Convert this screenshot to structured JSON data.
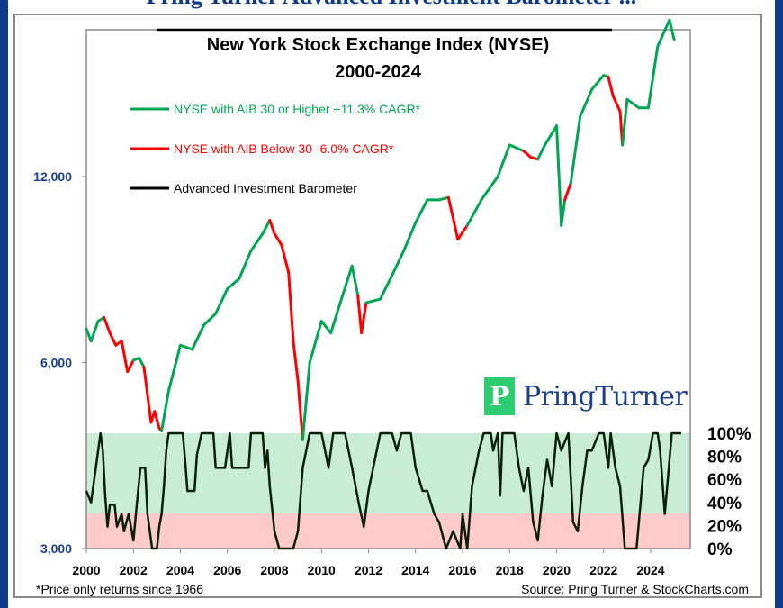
{
  "header": {
    "title": "Pring Turner Advanced Investment Barometer ..."
  },
  "logo": {
    "mark": "P",
    "text": "PringTurner"
  },
  "chart_data": {
    "type": "line",
    "title": "New York Stock Exchange Index (NYSE)",
    "subtitle": "2000-2024",
    "footnote": "*Price only returns since 1966",
    "source": "Source: Pring Turner & StockCharts.com",
    "legend": [
      {
        "label": "NYSE with AIB 30 or Higher +11.3% CAGR*",
        "color": "#00a651"
      },
      {
        "label": "NYSE with AIB Below 30 -6.0% CAGR*",
        "color": "#ff0000"
      },
      {
        "label": "Advanced Investment Barometer",
        "color": "#000000"
      }
    ],
    "legend_placement": "top-left",
    "y_scale": "log",
    "ylim": [
      3000,
      24000
    ],
    "y_ticks": [
      "3,000",
      "6,000",
      "12,000"
    ],
    "y_tick_values": [
      3000,
      6000,
      12000
    ],
    "x_ticks": [
      "2000",
      "2002",
      "2004",
      "2006",
      "2008",
      "2010",
      "2012",
      "2014",
      "2016",
      "2018",
      "2020",
      "2022",
      "2024"
    ],
    "xlim": [
      2000,
      2025.7
    ],
    "aib_ticks": [
      "100%",
      "80%",
      "60%",
      "40%",
      "20%",
      "0%"
    ],
    "aib_threshold": 30,
    "colors": {
      "green": "#00a651",
      "red": "#ff0000",
      "aib": "#0a1f0a",
      "green_band": "#c8ecd5",
      "red_band": "#fecaca",
      "axis_label": "#1b3f8f"
    },
    "nyse": [
      [
        2000.0,
        6800,
        "g"
      ],
      [
        2000.2,
        6500,
        "g"
      ],
      [
        2000.5,
        7000,
        "g"
      ],
      [
        2000.75,
        7100,
        "r"
      ],
      [
        2001.0,
        6700,
        "r"
      ],
      [
        2001.25,
        6400,
        "r"
      ],
      [
        2001.5,
        6500,
        "r"
      ],
      [
        2001.75,
        5800,
        "r"
      ],
      [
        2002.0,
        6050,
        "g"
      ],
      [
        2002.25,
        6100,
        "g"
      ],
      [
        2002.45,
        5900,
        "r"
      ],
      [
        2002.75,
        4800,
        "r"
      ],
      [
        2002.9,
        5000,
        "r"
      ],
      [
        2003.1,
        4700,
        "r"
      ],
      [
        2003.2,
        4650,
        "g"
      ],
      [
        2003.5,
        5400,
        "g"
      ],
      [
        2004.0,
        6400,
        "g"
      ],
      [
        2004.5,
        6300,
        "g"
      ],
      [
        2005.0,
        6900,
        "g"
      ],
      [
        2005.5,
        7200,
        "g"
      ],
      [
        2006.0,
        7900,
        "g"
      ],
      [
        2006.5,
        8200,
        "g"
      ],
      [
        2007.0,
        9100,
        "g"
      ],
      [
        2007.5,
        9700,
        "g"
      ],
      [
        2007.8,
        10200,
        "r"
      ],
      [
        2008.0,
        9700,
        "r"
      ],
      [
        2008.3,
        9300,
        "r"
      ],
      [
        2008.6,
        8400,
        "r"
      ],
      [
        2008.8,
        6500,
        "r"
      ],
      [
        2009.0,
        5600,
        "r"
      ],
      [
        2009.2,
        4500,
        "g"
      ],
      [
        2009.5,
        6000,
        "g"
      ],
      [
        2010.0,
        7000,
        "g"
      ],
      [
        2010.4,
        6700,
        "g"
      ],
      [
        2010.8,
        7500,
        "g"
      ],
      [
        2011.3,
        8600,
        "g"
      ],
      [
        2011.55,
        7700,
        "r"
      ],
      [
        2011.7,
        6700,
        "r"
      ],
      [
        2011.9,
        7500,
        "g"
      ],
      [
        2012.5,
        7600,
        "g"
      ],
      [
        2013.0,
        8300,
        "g"
      ],
      [
        2013.5,
        9100,
        "g"
      ],
      [
        2014.0,
        10100,
        "g"
      ],
      [
        2014.5,
        11000,
        "g"
      ],
      [
        2015.0,
        11000,
        "g"
      ],
      [
        2015.4,
        11100,
        "r"
      ],
      [
        2015.8,
        9500,
        "r"
      ],
      [
        2016.2,
        10000,
        "g"
      ],
      [
        2016.8,
        11000,
        "g"
      ],
      [
        2017.5,
        12000,
        "g"
      ],
      [
        2018.0,
        13500,
        "g"
      ],
      [
        2018.6,
        13200,
        "r"
      ],
      [
        2018.9,
        12900,
        "r"
      ],
      [
        2019.2,
        12800,
        "g"
      ],
      [
        2019.5,
        13500,
        "g"
      ],
      [
        2020.0,
        14500,
        "g"
      ],
      [
        2020.2,
        10000,
        "g"
      ],
      [
        2020.35,
        11000,
        "r"
      ],
      [
        2020.6,
        11700,
        "g"
      ],
      [
        2021.0,
        15000,
        "g"
      ],
      [
        2021.5,
        16600,
        "g"
      ],
      [
        2022.0,
        17500,
        "g"
      ],
      [
        2022.2,
        17400,
        "r"
      ],
      [
        2022.4,
        16200,
        "r"
      ],
      [
        2022.7,
        15300,
        "r"
      ],
      [
        2022.8,
        13500,
        "g"
      ],
      [
        2023.0,
        16000,
        "g"
      ],
      [
        2023.5,
        15500,
        "g"
      ],
      [
        2023.9,
        15500,
        "g"
      ],
      [
        2024.3,
        19500,
        "g"
      ],
      [
        2024.8,
        21500,
        "g"
      ],
      [
        2025.0,
        20000,
        "g"
      ]
    ],
    "aib": [
      [
        2000.0,
        50
      ],
      [
        2000.2,
        40
      ],
      [
        2000.4,
        70
      ],
      [
        2000.5,
        85
      ],
      [
        2000.6,
        100
      ],
      [
        2000.7,
        85
      ],
      [
        2000.8,
        46
      ],
      [
        2000.9,
        19
      ],
      [
        2001.0,
        38
      ],
      [
        2001.2,
        38
      ],
      [
        2001.3,
        19
      ],
      [
        2001.5,
        30
      ],
      [
        2001.6,
        15
      ],
      [
        2001.8,
        30
      ],
      [
        2002.0,
        7
      ],
      [
        2002.2,
        50
      ],
      [
        2002.3,
        70
      ],
      [
        2002.5,
        70
      ],
      [
        2002.6,
        30
      ],
      [
        2002.8,
        0
      ],
      [
        2003.0,
        0
      ],
      [
        2003.1,
        19
      ],
      [
        2003.2,
        30
      ],
      [
        2003.3,
        54
      ],
      [
        2003.4,
        85
      ],
      [
        2003.5,
        100
      ],
      [
        2004.1,
        100
      ],
      [
        2004.2,
        77
      ],
      [
        2004.3,
        50
      ],
      [
        2004.6,
        50
      ],
      [
        2004.7,
        81
      ],
      [
        2004.9,
        100
      ],
      [
        2005.4,
        100
      ],
      [
        2005.5,
        70
      ],
      [
        2005.9,
        70
      ],
      [
        2006.1,
        100
      ],
      [
        2006.2,
        70
      ],
      [
        2006.9,
        70
      ],
      [
        2007.0,
        100
      ],
      [
        2007.5,
        100
      ],
      [
        2007.6,
        70
      ],
      [
        2007.7,
        85
      ],
      [
        2007.8,
        54
      ],
      [
        2008.0,
        15
      ],
      [
        2008.2,
        0
      ],
      [
        2008.8,
        0
      ],
      [
        2009.0,
        15
      ],
      [
        2009.2,
        70
      ],
      [
        2009.5,
        100
      ],
      [
        2010.0,
        100
      ],
      [
        2010.3,
        70
      ],
      [
        2010.5,
        100
      ],
      [
        2011.0,
        100
      ],
      [
        2011.3,
        70
      ],
      [
        2011.6,
        38
      ],
      [
        2011.8,
        19
      ],
      [
        2012.0,
        50
      ],
      [
        2012.2,
        70
      ],
      [
        2012.5,
        100
      ],
      [
        2013.0,
        100
      ],
      [
        2013.2,
        85
      ],
      [
        2013.4,
        100
      ],
      [
        2013.8,
        100
      ],
      [
        2014.0,
        70
      ],
      [
        2014.3,
        50
      ],
      [
        2014.5,
        50
      ],
      [
        2014.8,
        30
      ],
      [
        2015.0,
        23
      ],
      [
        2015.3,
        0
      ],
      [
        2015.6,
        15
      ],
      [
        2015.9,
        0
      ],
      [
        2016.0,
        30
      ],
      [
        2016.2,
        0
      ],
      [
        2016.4,
        54
      ],
      [
        2016.7,
        85
      ],
      [
        2016.9,
        100
      ],
      [
        2017.2,
        100
      ],
      [
        2017.3,
        85
      ],
      [
        2017.5,
        100
      ],
      [
        2017.6,
        46
      ],
      [
        2017.7,
        100
      ],
      [
        2018.2,
        100
      ],
      [
        2018.4,
        70
      ],
      [
        2018.6,
        50
      ],
      [
        2018.8,
        70
      ],
      [
        2019.0,
        23
      ],
      [
        2019.2,
        7
      ],
      [
        2019.4,
        46
      ],
      [
        2019.6,
        77
      ],
      [
        2019.8,
        54
      ],
      [
        2020.0,
        100
      ],
      [
        2020.2,
        85
      ],
      [
        2020.5,
        100
      ],
      [
        2020.7,
        23
      ],
      [
        2020.9,
        15
      ],
      [
        2021.1,
        54
      ],
      [
        2021.3,
        85
      ],
      [
        2021.5,
        85
      ],
      [
        2021.8,
        100
      ],
      [
        2022.0,
        100
      ],
      [
        2022.2,
        70
      ],
      [
        2022.3,
        100
      ],
      [
        2022.5,
        70
      ],
      [
        2022.7,
        54
      ],
      [
        2022.9,
        0
      ],
      [
        2023.4,
        0
      ],
      [
        2023.5,
        23
      ],
      [
        2023.7,
        70
      ],
      [
        2023.9,
        77
      ],
      [
        2024.1,
        100
      ],
      [
        2024.3,
        100
      ],
      [
        2024.4,
        85
      ],
      [
        2024.6,
        30
      ],
      [
        2024.9,
        100
      ],
      [
        2025.3,
        100
      ]
    ]
  }
}
